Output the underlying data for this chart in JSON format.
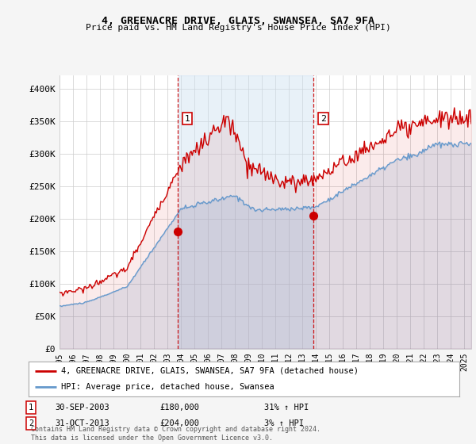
{
  "title": "4, GREENACRE DRIVE, GLAIS, SWANSEA, SA7 9FA",
  "subtitle": "Price paid vs. HM Land Registry's House Price Index (HPI)",
  "ylabel_ticks": [
    "£0",
    "£50K",
    "£100K",
    "£150K",
    "£200K",
    "£250K",
    "£300K",
    "£350K",
    "£400K"
  ],
  "ytick_values": [
    0,
    50000,
    100000,
    150000,
    200000,
    250000,
    300000,
    350000,
    400000
  ],
  "ylim": [
    0,
    420000
  ],
  "xlim_start": 1995.0,
  "xlim_end": 2025.5,
  "sale1_x": 2003.75,
  "sale1_y": 180000,
  "sale2_x": 2013.83,
  "sale2_y": 204000,
  "hpi_color": "#6699cc",
  "price_color": "#cc0000",
  "vline_color": "#cc0000",
  "dot_color": "#cc0000",
  "background_color": "#f5f5f5",
  "plot_bg_color": "#ffffff",
  "grid_color": "#cccccc",
  "fill_between_color": "#cce0f0",
  "legend_label_price": "4, GREENACRE DRIVE, GLAIS, SWANSEA, SA7 9FA (detached house)",
  "legend_label_hpi": "HPI: Average price, detached house, Swansea",
  "sale1_date": "30-SEP-2003",
  "sale1_price": "£180,000",
  "sale1_hpi": "31% ↑ HPI",
  "sale2_date": "31-OCT-2013",
  "sale2_price": "£204,000",
  "sale2_hpi": "3% ↑ HPI",
  "footer": "Contains HM Land Registry data © Crown copyright and database right 2024.\nThis data is licensed under the Open Government Licence v3.0.",
  "xtick_years": [
    1995,
    1996,
    1997,
    1998,
    1999,
    2000,
    2001,
    2002,
    2003,
    2004,
    2005,
    2006,
    2007,
    2008,
    2009,
    2010,
    2011,
    2012,
    2013,
    2014,
    2015,
    2016,
    2017,
    2018,
    2019,
    2020,
    2021,
    2022,
    2023,
    2024,
    2025
  ]
}
